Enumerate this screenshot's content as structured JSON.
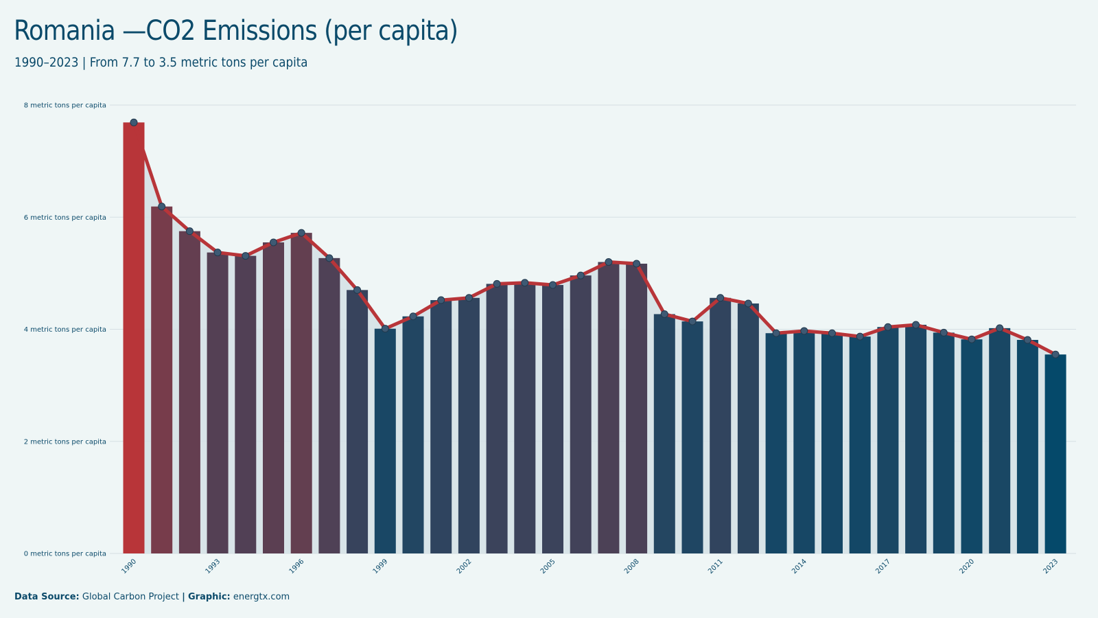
{
  "header": {
    "title": "Romania —CO2 Emissions (per capita)",
    "subtitle": "1990–2023 | From 7.7 to 3.5 metric tons per capita"
  },
  "footer": {
    "source_label": "Data Source:",
    "source_value": "Global Carbon Project",
    "separator": "|",
    "graphic_label": "Graphic:",
    "graphic_value": "energtx.com"
  },
  "colors": {
    "high": "#b83539",
    "low": "#05496a",
    "line": "#b83539",
    "marker_fill": "#3e5a74",
    "area": "#d3e1e5",
    "grid": "#d6dfe3"
  },
  "chart_data": {
    "type": "bar",
    "title": "Romania —CO2 Emissions (per capita)",
    "subtitle": "1990–2023 | From 7.7 to 3.5 metric tons per capita",
    "ylabel": "",
    "xlabel": "",
    "ylim": [
      0,
      8
    ],
    "y_ticks": [
      0,
      2,
      4,
      6,
      8
    ],
    "y_tick_labels": [
      "0 metric tons per capita",
      "2 metric tons per capita",
      "4 metric tons per capita",
      "6 metric tons per capita",
      "8 metric tons per capita"
    ],
    "x_tick_labels": [
      "1990",
      "1993",
      "1996",
      "1999",
      "2002",
      "2005",
      "2008",
      "2011",
      "2014",
      "2017",
      "2020",
      "2023"
    ],
    "grid": true,
    "categories": [
      1990,
      1991,
      1992,
      1993,
      1994,
      1995,
      1996,
      1997,
      1998,
      1999,
      2000,
      2001,
      2002,
      2003,
      2004,
      2005,
      2006,
      2007,
      2008,
      2009,
      2010,
      2011,
      2012,
      2013,
      2014,
      2015,
      2016,
      2017,
      2018,
      2019,
      2020,
      2021,
      2022,
      2023
    ],
    "values": [
      7.69,
      6.19,
      5.75,
      5.37,
      5.31,
      5.55,
      5.72,
      5.27,
      4.7,
      4.01,
      4.23,
      4.52,
      4.56,
      4.81,
      4.83,
      4.79,
      4.96,
      5.2,
      5.17,
      4.27,
      4.14,
      4.56,
      4.46,
      3.93,
      3.97,
      3.93,
      3.87,
      4.04,
      4.08,
      3.94,
      3.82,
      4.02,
      3.81,
      3.55
    ],
    "overlay": "line with markers and shaded area"
  }
}
